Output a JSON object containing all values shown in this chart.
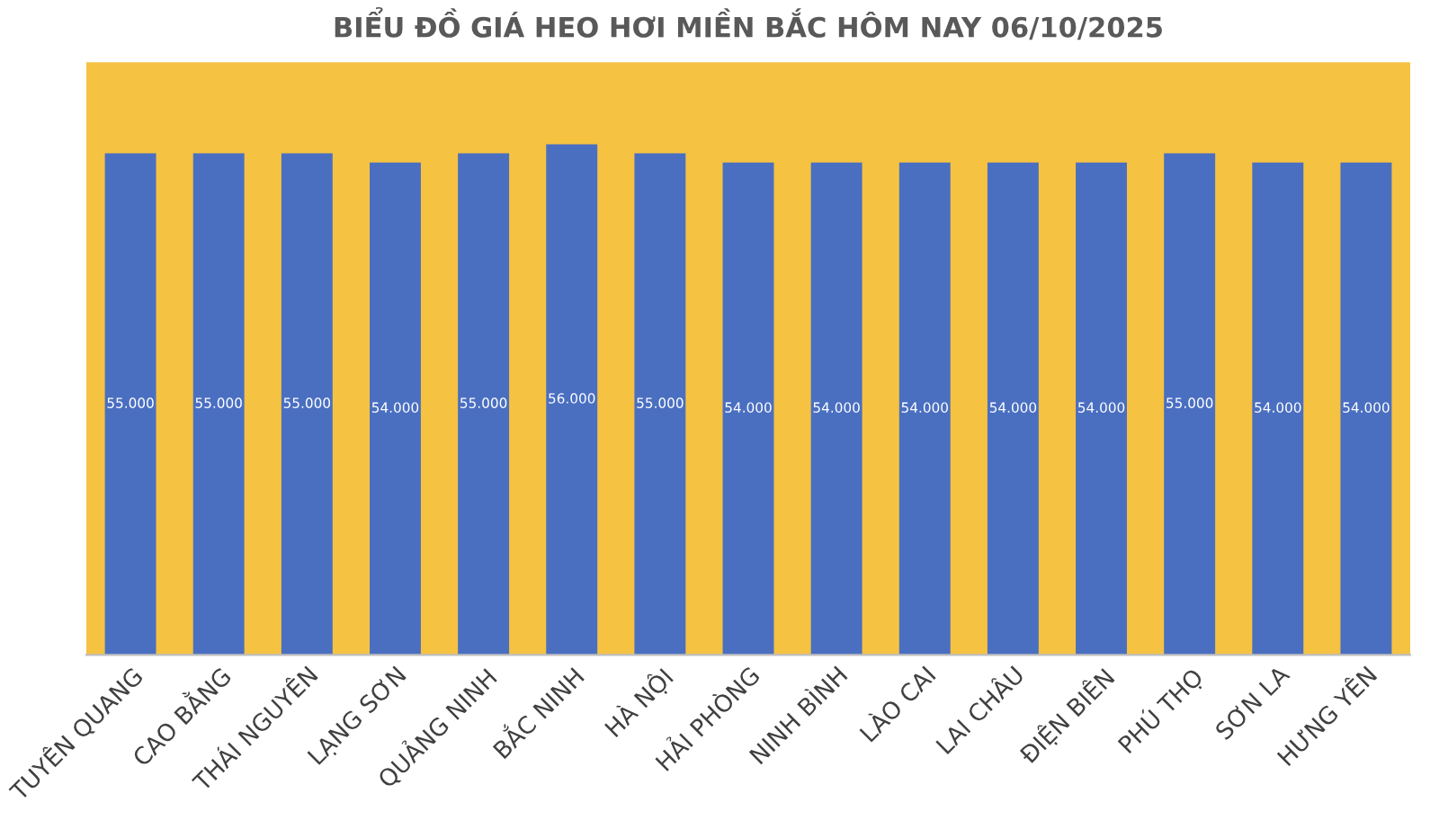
{
  "chart_data": {
    "type": "bar",
    "title": "BIỂU ĐỒ GIÁ HEO HƠI MIỀN BẮC HÔM NAY 06/10/2025",
    "categories": [
      "TUYÊN QUANG",
      "CAO BẰNG",
      "THÁI NGUYÊN",
      "LẠNG SƠN",
      "QUẢNG NINH",
      "BẮC NINH",
      "HÀ NỘI",
      "HẢI PHÒNG",
      "NINH BÌNH",
      "LÀO CAI",
      "LAI CHÂU",
      "ĐIỆN BIÊN",
      "PHÚ THỌ",
      "SƠN LA",
      "HƯNG YÊN"
    ],
    "values": [
      55000,
      55000,
      55000,
      54000,
      55000,
      56000,
      55000,
      54000,
      54000,
      54000,
      54000,
      54000,
      55000,
      54000,
      54000
    ],
    "value_labels": [
      "55.000",
      "55.000",
      "55.000",
      "54.000",
      "55.000",
      "56.000",
      "55.000",
      "54.000",
      "54.000",
      "54.000",
      "54.000",
      "54.000",
      "55.000",
      "54.000",
      "54.000"
    ],
    "color": "#4a6fc1",
    "ylim": [
      0,
      65000
    ],
    "tick_labels": "x",
    "grid": false,
    "legend": false
  }
}
